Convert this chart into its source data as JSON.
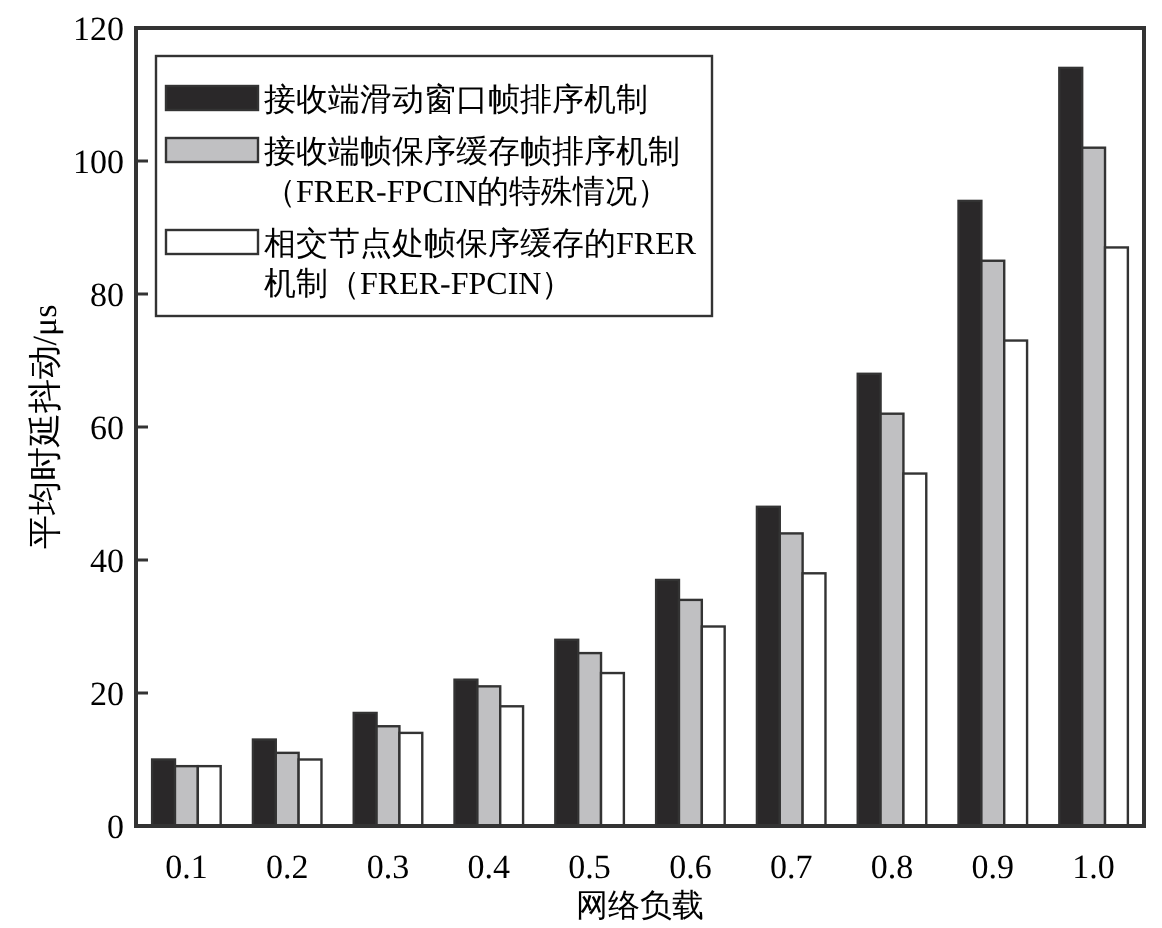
{
  "chart_data": {
    "type": "bar",
    "xlabel": "网络负载",
    "ylabel": "平均时延抖动/μs",
    "categories": [
      "0.1",
      "0.2",
      "0.3",
      "0.4",
      "0.5",
      "0.6",
      "0.7",
      "0.8",
      "0.9",
      "1.0"
    ],
    "series": [
      {
        "name": "接收端滑动窗口帧排序机制",
        "color": "#2a2829",
        "values": [
          10,
          13,
          17,
          22,
          28,
          37,
          48,
          68,
          94,
          114
        ]
      },
      {
        "name": "接收端帧保序缓存帧排序机制（FRER-FPCIN的特殊情况）",
        "color": "#c0c0c2",
        "values": [
          9,
          11,
          15,
          21,
          26,
          34,
          44,
          62,
          85,
          102
        ]
      },
      {
        "name": "相交节点处帧保序缓存的FRER机制（FRER-FPCIN）",
        "color": "#ffffff",
        "values": [
          9,
          10,
          14,
          18,
          23,
          30,
          38,
          53,
          73,
          87
        ]
      }
    ],
    "ylim": [
      0,
      120
    ],
    "yticks": [
      0,
      20,
      40,
      60,
      80,
      100,
      120
    ],
    "legend": "top left"
  }
}
